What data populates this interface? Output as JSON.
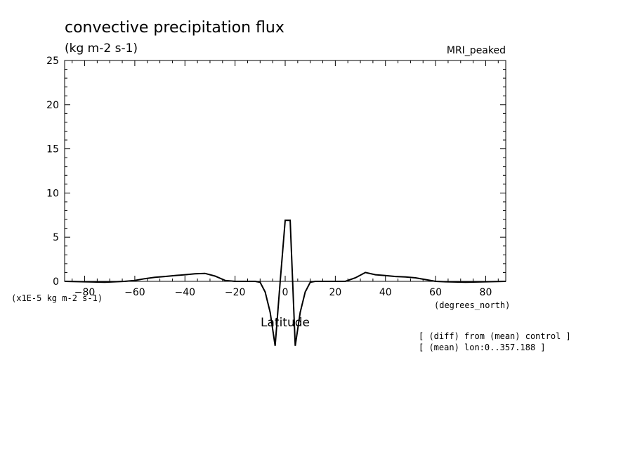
{
  "chart_data": {
    "type": "line",
    "title": "convective precipitation flux",
    "units": "(kg m-2 s-1)",
    "model": "MRI_peaked",
    "xlabel": "Latitude",
    "xunits": "(degrees_north)",
    "yunits": "(x1E-5 kg m-2 s-1)",
    "xlim": [
      -88,
      88
    ],
    "ylim": [
      0,
      25
    ],
    "xticks": [
      -80,
      -60,
      -40,
      -20,
      0,
      20,
      40,
      60,
      80
    ],
    "yticks": [
      0,
      5,
      10,
      15,
      20,
      25
    ],
    "notes": [
      "[ (diff) from (mean) control ]",
      "[ (mean) lon:0..357.188 ]"
    ],
    "series": [
      {
        "x": [
          -88,
          -80,
          -72,
          -64,
          -60,
          -56,
          -52,
          -48,
          -44,
          -40,
          -36,
          -32,
          -28,
          -24,
          -20,
          -16,
          -12,
          -10,
          -8,
          -6,
          -4,
          -2,
          0,
          2,
          4,
          6,
          8,
          10,
          12,
          16,
          20,
          24,
          28,
          32,
          36,
          40,
          44,
          48,
          52,
          56,
          60,
          64,
          72,
          80,
          88
        ],
        "y": [
          0,
          -0.05,
          -0.1,
          0,
          0.1,
          0.3,
          0.45,
          0.55,
          0.65,
          0.75,
          0.85,
          0.9,
          0.6,
          0.1,
          0,
          0,
          0,
          -0.1,
          -1.2,
          -3.5,
          -7.3,
          0,
          6.9,
          6.9,
          -7.3,
          -3.5,
          -1.2,
          -0.1,
          0,
          0,
          0,
          0,
          0.4,
          1.0,
          0.75,
          0.65,
          0.55,
          0.5,
          0.4,
          0.2,
          0,
          -0.05,
          -0.1,
          -0.05,
          0
        ]
      }
    ]
  }
}
